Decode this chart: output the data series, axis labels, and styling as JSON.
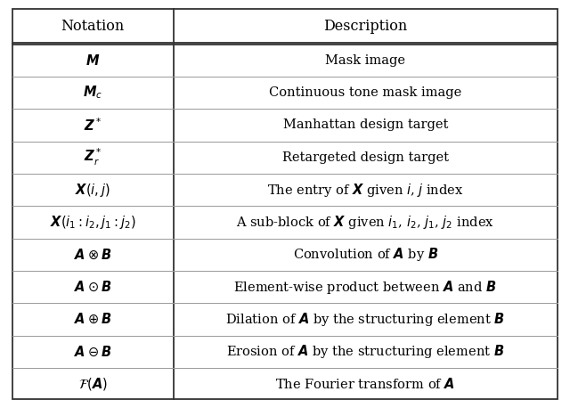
{
  "title_left": "Notation",
  "title_right": "Description",
  "rows": [
    {
      "notation": "$\\boldsymbol{M}$",
      "description": "Mask image"
    },
    {
      "notation": "$\\boldsymbol{M}_c$",
      "description": "Continuous tone mask image"
    },
    {
      "notation": "$\\boldsymbol{Z}^*$",
      "description": "Manhattan design target"
    },
    {
      "notation": "$\\boldsymbol{Z}_r^*$",
      "description": "Retargeted design target"
    },
    {
      "notation": "$\\boldsymbol{X}(i, j)$",
      "description": "The entry of $\\boldsymbol{X}$ given $i$, $j$ index"
    },
    {
      "notation": "$\\boldsymbol{X}(i_1 : i_2, j_1 : j_2)$",
      "description": "A sub-block of $\\boldsymbol{X}$ given $i_1$, $i_2$, $j_1$, $j_2$ index"
    },
    {
      "notation": "$\\boldsymbol{A} \\otimes \\boldsymbol{B}$",
      "description": "Convolution of $\\boldsymbol{A}$ by $\\boldsymbol{B}$"
    },
    {
      "notation": "$\\boldsymbol{A} \\odot \\boldsymbol{B}$",
      "description": "Element-wise product between $\\boldsymbol{A}$ and $\\boldsymbol{B}$"
    },
    {
      "notation": "$\\boldsymbol{A} \\oplus \\boldsymbol{B}$",
      "description": "Dilation of $\\boldsymbol{A}$ by the structuring element $\\boldsymbol{B}$"
    },
    {
      "notation": "$\\boldsymbol{A} \\ominus \\boldsymbol{B}$",
      "description": "Erosion of $\\boldsymbol{A}$ by the structuring element $\\boldsymbol{B}$"
    },
    {
      "notation": "$\\mathcal{F}(\\boldsymbol{A})$",
      "description": "The Fourier transform of $\\boldsymbol{A}$"
    }
  ],
  "col_split": 0.295,
  "bg_color": "#ffffff",
  "outer_border_color": "#333333",
  "header_line_color": "#333333",
  "row_line_color": "#999999",
  "fontsize": 10.5
}
